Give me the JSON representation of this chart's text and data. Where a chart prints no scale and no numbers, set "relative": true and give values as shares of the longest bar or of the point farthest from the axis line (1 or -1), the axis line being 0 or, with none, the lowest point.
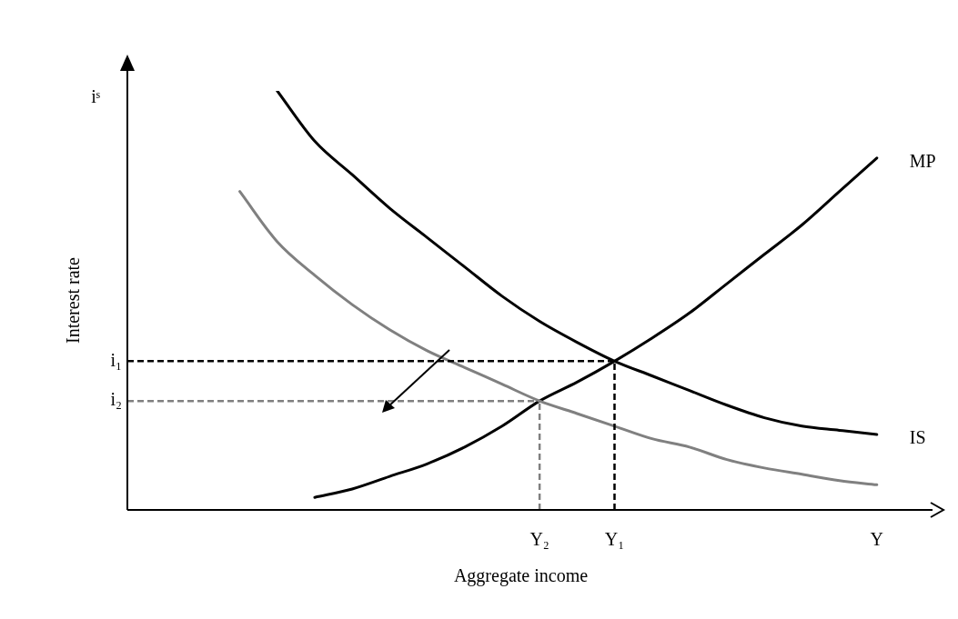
{
  "chart_data": {
    "type": "line",
    "relative": true,
    "xlabel": "Aggregate income",
    "ylabel": "Interest rate",
    "legend": false,
    "grid": false,
    "marker": "none",
    "annotations": [
      "iˢ"
    ],
    "categories": [
      null,
      null,
      null,
      null,
      null,
      null,
      null,
      null,
      null,
      null,
      null,
      "Y₂",
      null,
      "Y₁",
      null,
      null,
      null,
      null,
      null,
      null,
      "Y",
      null
    ],
    "series": [
      {
        "name": "IS",
        "color": "#000000",
        "values": [
          null,
          null,
          null,
          null,
          1.0,
          0.88,
          0.8,
          0.72,
          0.65,
          0.58,
          0.51,
          0.45,
          0.4,
          0.355,
          0.32,
          0.285,
          0.25,
          0.22,
          0.2,
          0.19,
          0.18,
          null
        ]
      },
      {
        "color": "#808080",
        "values": [
          null,
          null,
          null,
          0.76,
          0.64,
          0.56,
          0.49,
          0.43,
          0.38,
          0.34,
          0.3,
          0.26,
          0.23,
          0.2,
          0.17,
          0.15,
          0.12,
          0.1,
          0.085,
          0.07,
          0.06,
          null
        ]
      },
      {
        "name": "MP",
        "color": "#000000",
        "values": [
          null,
          null,
          null,
          null,
          null,
          0.03,
          0.05,
          0.08,
          0.11,
          0.15,
          0.2,
          0.26,
          0.305,
          0.355,
          0.41,
          0.47,
          0.54,
          0.61,
          0.68,
          0.76,
          0.84,
          null
        ]
      }
    ],
    "ref_lines": [
      {
        "axis": "y",
        "value": 0.355,
        "label": "i₁",
        "color": "#000000",
        "line_style": "dashed"
      },
      {
        "axis": "y",
        "value": 0.26,
        "label": "i₂",
        "color": "#808080",
        "line_style": "dashed"
      },
      {
        "axis": "x",
        "value": "Y₁",
        "color": "#000000",
        "line_style": "dashed"
      },
      {
        "axis": "x",
        "value": "Y₂",
        "color": "#808080",
        "line_style": "dashed"
      }
    ]
  }
}
